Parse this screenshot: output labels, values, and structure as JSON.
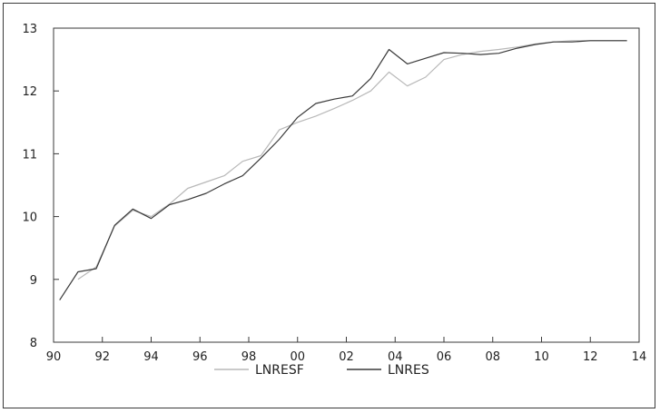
{
  "chart_data": {
    "type": "line",
    "title": "",
    "xlabel": "",
    "ylabel": "",
    "xlim": [
      1990,
      2014
    ],
    "ylim": [
      8,
      13
    ],
    "x_ticks": [
      "90",
      "92",
      "94",
      "96",
      "98",
      "00",
      "02",
      "04",
      "06",
      "08",
      "10",
      "12",
      "14"
    ],
    "y_ticks": [
      "8",
      "9",
      "10",
      "11",
      "12",
      "13"
    ],
    "grid": false,
    "legend_position": "bottom",
    "series": [
      {
        "name": "LNRESF",
        "color": "#b8b8b8",
        "x": [
          1991.0,
          1991.75,
          1992.5,
          1993.25,
          1994.0,
          1994.75,
          1995.5,
          1996.25,
          1997.0,
          1997.75,
          1998.5,
          1999.25,
          2000.0,
          2000.75,
          2001.5,
          2002.25,
          2003.0,
          2003.75,
          2004.5,
          2005.25,
          2006.0,
          2006.75,
          2007.5,
          2008.25,
          2009.0,
          2009.75,
          2010.5,
          2011.25,
          2012.0,
          2012.75,
          2013.5
        ],
        "values": [
          9.0,
          9.2,
          9.85,
          10.1,
          10.0,
          10.2,
          10.45,
          10.55,
          10.65,
          10.88,
          10.97,
          11.38,
          11.5,
          11.6,
          11.72,
          11.85,
          12.0,
          12.3,
          12.08,
          12.22,
          12.5,
          12.58,
          12.63,
          12.66,
          12.7,
          12.75,
          12.78,
          12.8,
          12.8,
          12.8,
          12.8
        ]
      },
      {
        "name": "LNRES",
        "color": "#3a3a3a",
        "x": [
          1990.25,
          1991.0,
          1991.75,
          1992.5,
          1993.25,
          1994.0,
          1994.75,
          1995.5,
          1996.25,
          1997.0,
          1997.75,
          1998.5,
          1999.25,
          2000.0,
          2000.75,
          2001.5,
          2002.25,
          2003.0,
          2003.75,
          2004.5,
          2005.25,
          2006.0,
          2006.75,
          2007.5,
          2008.25,
          2009.0,
          2009.75,
          2010.5,
          2011.25,
          2012.0,
          2012.75,
          2013.5
        ],
        "values": [
          8.67,
          9.12,
          9.17,
          9.86,
          10.12,
          9.97,
          10.19,
          10.27,
          10.37,
          10.52,
          10.65,
          10.93,
          11.23,
          11.58,
          11.8,
          11.87,
          11.92,
          12.2,
          12.66,
          12.43,
          12.52,
          12.61,
          12.6,
          12.58,
          12.6,
          12.68,
          12.74,
          12.78,
          12.78,
          12.8,
          12.8,
          12.8
        ]
      }
    ]
  }
}
